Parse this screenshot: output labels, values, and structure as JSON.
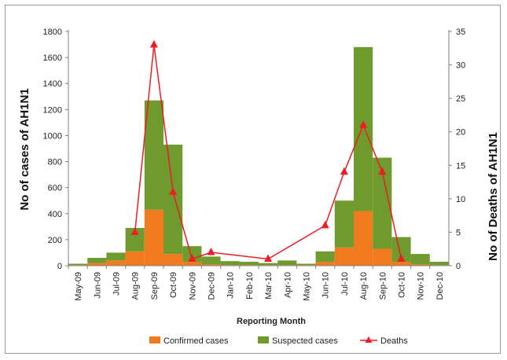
{
  "chart_data": {
    "type": "bar",
    "title": "",
    "xlabel": "Reporting Month",
    "ylabel": "No of cases of AH1N1",
    "y2label": "No of Deaths  of AH1N1",
    "ylim": [
      0,
      1800
    ],
    "y2lim": [
      0,
      35
    ],
    "yticks": [
      0,
      200,
      400,
      600,
      800,
      1000,
      1200,
      1400,
      1600,
      1800
    ],
    "y2ticks": [
      0,
      5,
      10,
      15,
      20,
      25,
      30,
      35
    ],
    "categories": [
      "May-09",
      "Jun-09",
      "Jul-09",
      "Aug-09",
      "Sep-09",
      "Oct-09",
      "Nov-09",
      "Dec-09",
      "Jan-10",
      "Feb-10",
      "Mar-10",
      "Apr-10",
      "May-10",
      "Jun-10",
      "Jul-10",
      "Aug-10",
      "Sep-10",
      "Oct-10",
      "Nov-10",
      "Dec-10"
    ],
    "stacked": true,
    "series": [
      {
        "name": "Confirmed cases",
        "type": "bar",
        "axis": "left",
        "color": "#f07a1e",
        "values": [
          5,
          20,
          40,
          110,
          430,
          90,
          30,
          10,
          5,
          5,
          5,
          5,
          5,
          30,
          140,
          420,
          130,
          30,
          10,
          5
        ]
      },
      {
        "name": "Suspected cases",
        "type": "bar",
        "axis": "left",
        "color": "#6f9a2e",
        "values": [
          10,
          40,
          60,
          180,
          840,
          840,
          120,
          60,
          30,
          25,
          15,
          35,
          10,
          80,
          360,
          1260,
          700,
          190,
          80,
          25
        ]
      },
      {
        "name": "Deaths",
        "type": "line",
        "axis": "right",
        "color": "#ee1c24",
        "x": [
          "Aug-09",
          "Sep-09",
          "Oct-09",
          "Nov-09",
          "Dec-09",
          "Mar-10",
          "Jun-10",
          "Jul-10",
          "Aug-10",
          "Sep-10",
          "Oct-10"
        ],
        "values": [
          5,
          33,
          11,
          1,
          2,
          1,
          6,
          14,
          21,
          14,
          1
        ]
      }
    ],
    "legend_position": "bottom"
  }
}
